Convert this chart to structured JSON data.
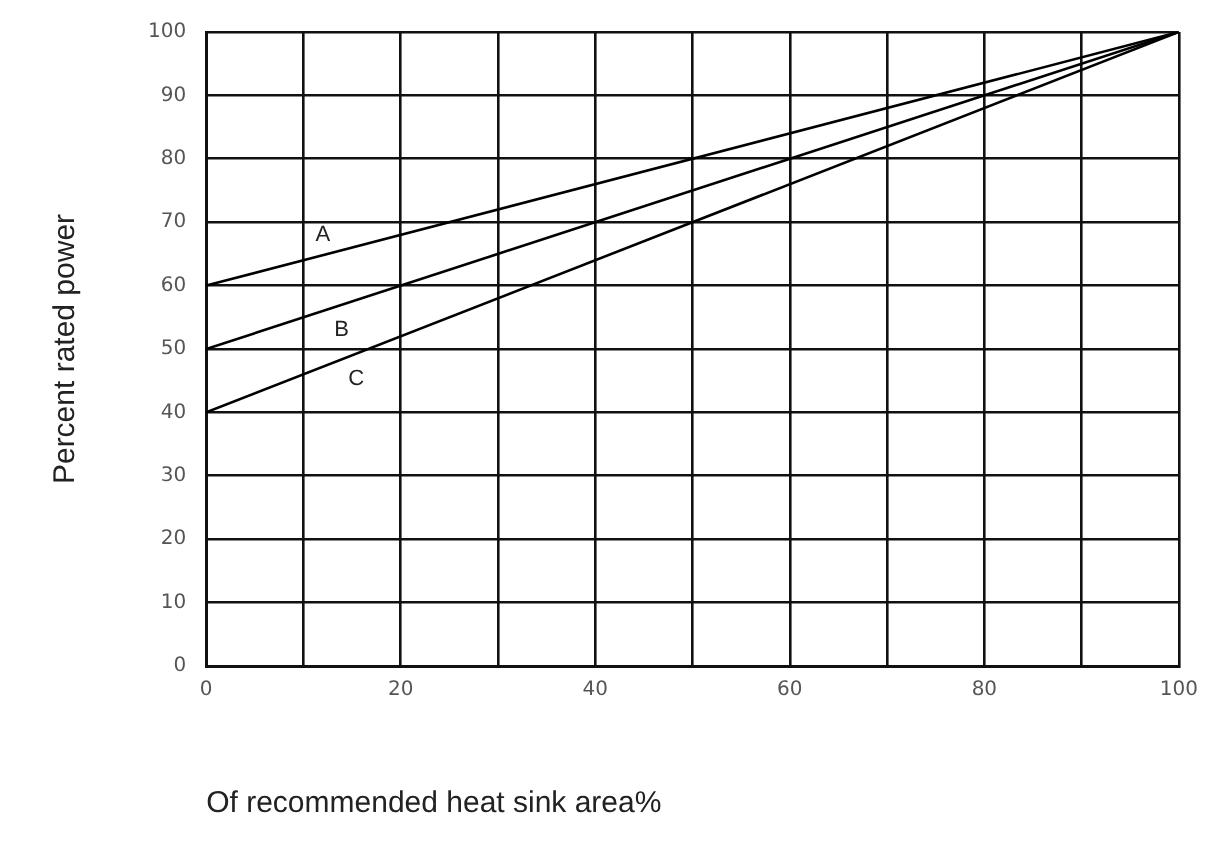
{
  "chart_data": {
    "type": "line",
    "xlabel": "Of recommended heat sink area%",
    "ylabel": "Percent rated power",
    "x": [
      0,
      100
    ],
    "series": [
      {
        "name": "A",
        "color": "#000000",
        "values": [
          60,
          100
        ]
      },
      {
        "name": "B",
        "color": "#000000",
        "values": [
          50,
          100
        ]
      },
      {
        "name": "C",
        "color": "#000000",
        "values": [
          40,
          100
        ]
      }
    ],
    "xlim": [
      0,
      100
    ],
    "xticks": [
      0,
      {
        "value": 10,
        "label": null
      },
      20,
      {
        "value": 30,
        "label": null
      },
      40,
      {
        "value": 50,
        "label": null
      },
      60,
      {
        "value": 70,
        "label": null
      },
      80,
      {
        "value": 90,
        "label": null
      },
      100
    ],
    "ylim": [
      0,
      100
    ],
    "yticks": [
      0,
      10,
      20,
      30,
      40,
      50,
      60,
      70,
      80,
      90,
      100
    ],
    "grid": true,
    "legend": false,
    "marker": "none",
    "line_style": "solid"
  }
}
